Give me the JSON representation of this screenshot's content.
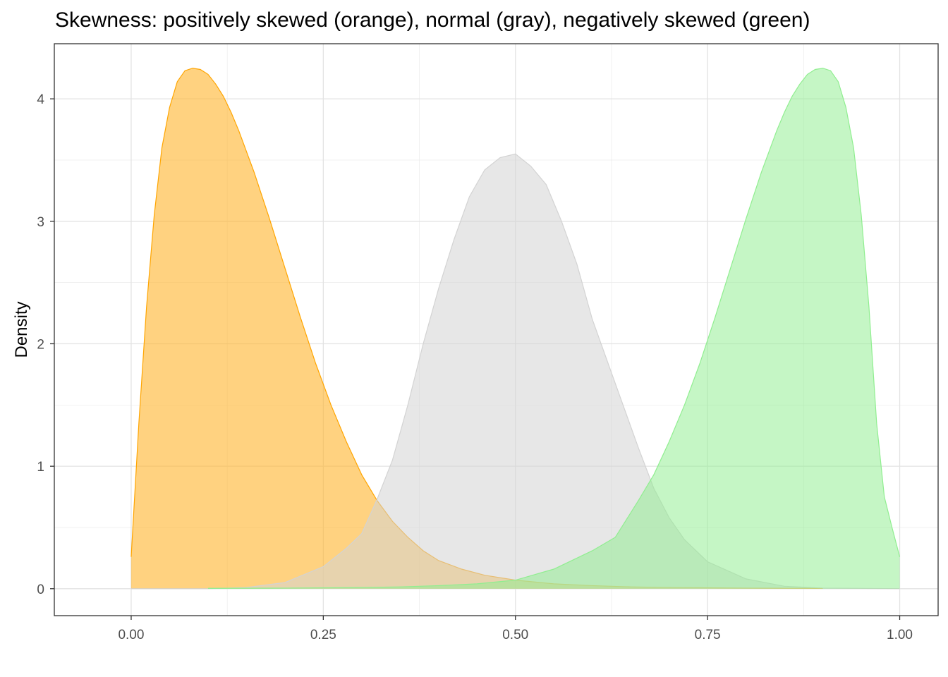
{
  "chart_data": {
    "type": "area",
    "title": "Skewness: positively skewed (orange), normal (gray), negatively skewed (green)",
    "xlabel": "",
    "ylabel": "Density",
    "xlim": [
      -0.1,
      1.05
    ],
    "ylim": [
      -0.22,
      4.45
    ],
    "x_ticks": [
      0.0,
      0.25,
      0.5,
      0.75,
      1.0
    ],
    "x_tick_labels": [
      "0.00",
      "0.25",
      "0.50",
      "0.75",
      "1.00"
    ],
    "y_ticks": [
      0,
      1,
      2,
      3,
      4
    ],
    "y_tick_labels": [
      "0",
      "1",
      "2",
      "3",
      "4"
    ],
    "grid": true,
    "legend": "none",
    "series": [
      {
        "color_key": "orange",
        "fill": "#FFB732",
        "stroke": "#FFA500",
        "fill_opacity": 0.62,
        "x": [
          0.0,
          0.01,
          0.02,
          0.03,
          0.04,
          0.05,
          0.06,
          0.07,
          0.08,
          0.09,
          0.1,
          0.11,
          0.12,
          0.13,
          0.14,
          0.15,
          0.16,
          0.17,
          0.18,
          0.19,
          0.2,
          0.22,
          0.24,
          0.26,
          0.28,
          0.3,
          0.32,
          0.34,
          0.36,
          0.38,
          0.4,
          0.43,
          0.46,
          0.5,
          0.55,
          0.6,
          0.65,
          0.7,
          0.8,
          0.9
        ],
        "y": [
          0.26,
          1.35,
          2.3,
          3.05,
          3.6,
          3.93,
          4.14,
          4.23,
          4.25,
          4.24,
          4.2,
          4.12,
          4.02,
          3.89,
          3.74,
          3.57,
          3.4,
          3.21,
          3.02,
          2.82,
          2.62,
          2.22,
          1.84,
          1.5,
          1.2,
          0.93,
          0.72,
          0.55,
          0.42,
          0.31,
          0.23,
          0.16,
          0.11,
          0.07,
          0.04,
          0.025,
          0.015,
          0.01,
          0.005,
          0.003
        ]
      },
      {
        "color_key": "gray",
        "fill": "#D3D3D3",
        "stroke": "#D3D3D3",
        "fill_opacity": 0.55,
        "x": [
          0.0,
          0.1,
          0.15,
          0.2,
          0.25,
          0.28,
          0.3,
          0.32,
          0.34,
          0.36,
          0.38,
          0.4,
          0.42,
          0.44,
          0.46,
          0.48,
          0.5,
          0.52,
          0.54,
          0.56,
          0.58,
          0.6,
          0.62,
          0.64,
          0.66,
          0.68,
          0.7,
          0.72,
          0.75,
          0.8,
          0.85,
          0.9,
          1.0
        ],
        "y": [
          0.0,
          0.0,
          0.01,
          0.05,
          0.18,
          0.33,
          0.45,
          0.73,
          1.05,
          1.5,
          2.0,
          2.45,
          2.85,
          3.2,
          3.42,
          3.52,
          3.55,
          3.45,
          3.3,
          3.0,
          2.65,
          2.2,
          1.85,
          1.5,
          1.15,
          0.82,
          0.58,
          0.4,
          0.22,
          0.08,
          0.02,
          0.005,
          0.0
        ]
      },
      {
        "color_key": "green",
        "fill": "#90EE90",
        "stroke": "#90EE90",
        "fill_opacity": 0.52,
        "x": [
          0.1,
          0.2,
          0.3,
          0.35,
          0.4,
          0.45,
          0.5,
          0.55,
          0.6,
          0.63,
          0.66,
          0.68,
          0.7,
          0.72,
          0.74,
          0.76,
          0.78,
          0.8,
          0.81,
          0.82,
          0.83,
          0.84,
          0.85,
          0.86,
          0.87,
          0.88,
          0.89,
          0.9,
          0.91,
          0.92,
          0.93,
          0.94,
          0.95,
          0.96,
          0.97,
          0.98,
          0.99,
          1.0
        ],
        "y": [
          0.003,
          0.005,
          0.01,
          0.015,
          0.025,
          0.04,
          0.07,
          0.16,
          0.31,
          0.42,
          0.72,
          0.93,
          1.2,
          1.5,
          1.84,
          2.22,
          2.62,
          3.02,
          3.21,
          3.4,
          3.57,
          3.74,
          3.89,
          4.02,
          4.12,
          4.2,
          4.24,
          4.25,
          4.23,
          4.14,
          3.93,
          3.6,
          3.05,
          2.3,
          1.35,
          0.75,
          0.5,
          0.26
        ]
      }
    ]
  }
}
